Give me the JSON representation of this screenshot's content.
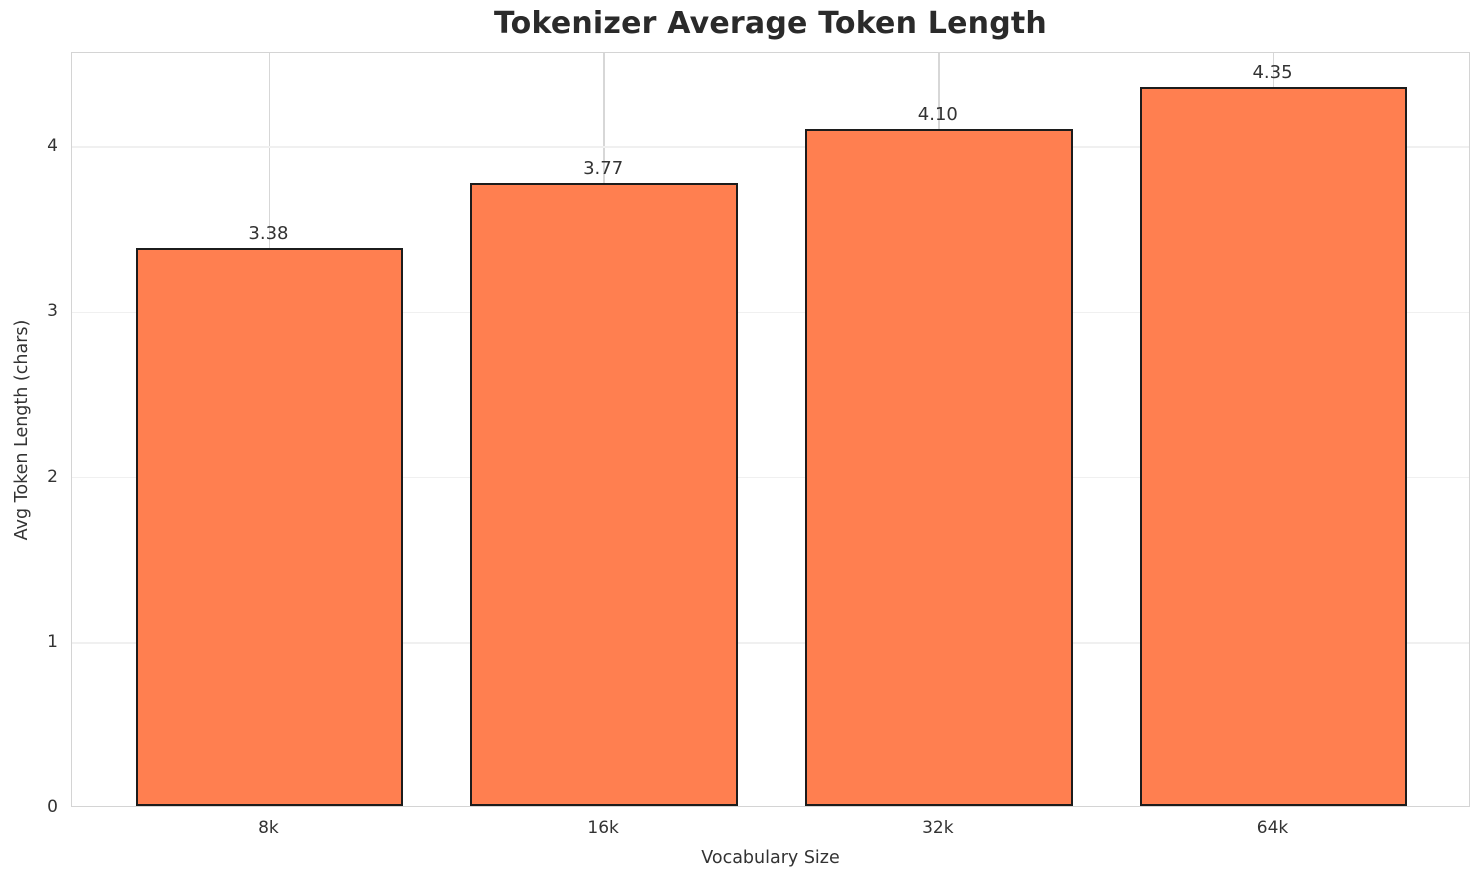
{
  "chart_data": {
    "type": "bar",
    "title": "Tokenizer Average Token Length",
    "xlabel": "Vocabulary Size",
    "ylabel": "Avg Token Length (chars)",
    "categories": [
      "8k",
      "16k",
      "32k",
      "64k"
    ],
    "values": [
      3.38,
      3.77,
      4.1,
      4.35
    ],
    "value_labels": [
      "3.38",
      "3.77",
      "4.10",
      "4.35"
    ],
    "ylim": [
      0,
      4.57
    ],
    "yticks": [
      0,
      1,
      2,
      3,
      4
    ],
    "ytick_labels": [
      "0",
      "1",
      "2",
      "3",
      "4"
    ],
    "grid": "on",
    "legend": "none",
    "colors": {
      "bar_fill": "#FF7F50",
      "bar_edge": "#1c1c1c",
      "grid_horizontal": "#f0f0f0",
      "grid_vertical": "#d7d7d7",
      "spine": "#d4d4d4",
      "text": "#333333",
      "title": "#2a2a2a",
      "background": "#ffffff"
    }
  }
}
